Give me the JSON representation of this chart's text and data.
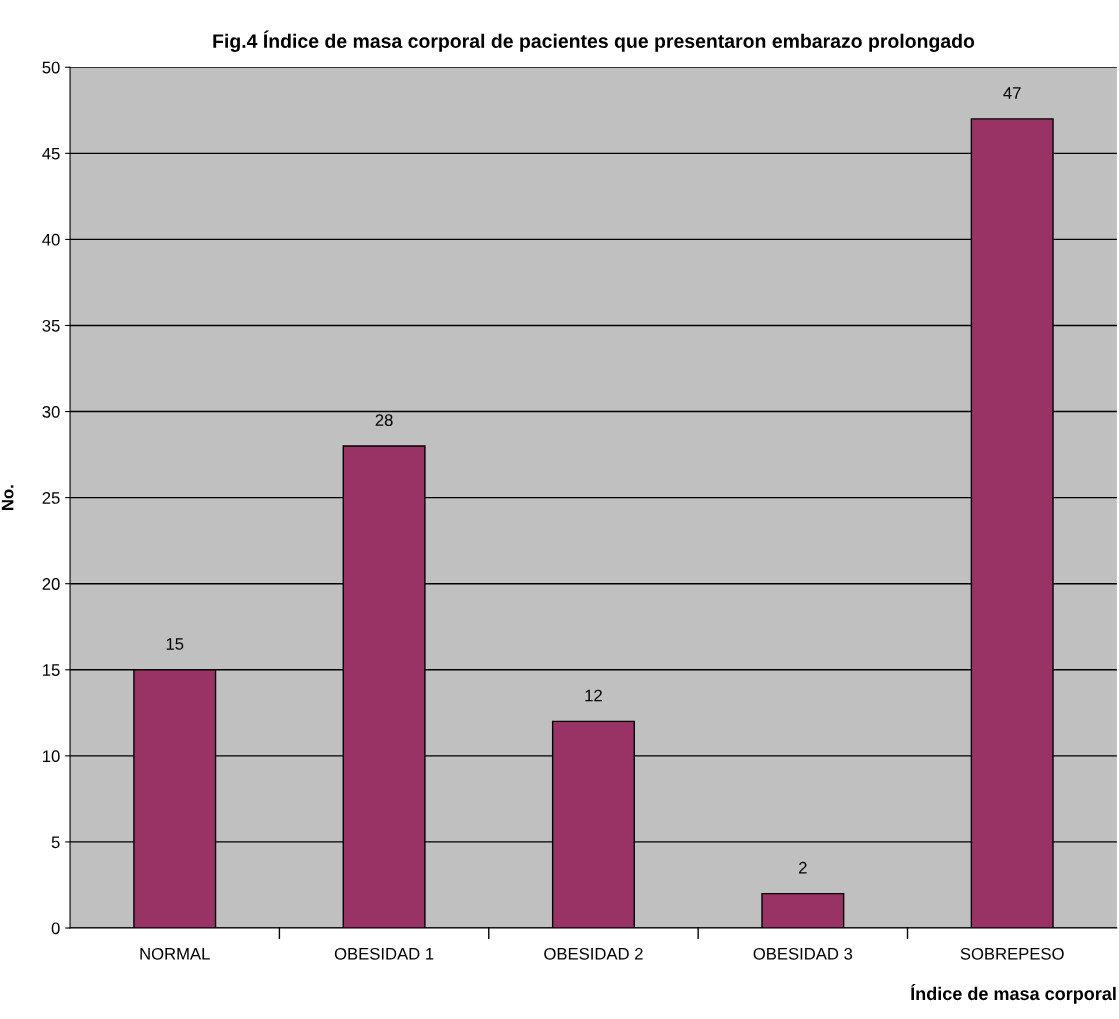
{
  "chart_data": {
    "type": "bar",
    "title": "Fig.4 Índice de masa corporal de pacientes que presentaron embarazo prolongado",
    "xlabel": "Índice de masa corporal",
    "ylabel": "No.",
    "categories": [
      "NORMAL",
      "OBESIDAD 1",
      "OBESIDAD 2",
      "OBESIDAD 3",
      "SOBREPESO"
    ],
    "values": [
      15,
      28,
      12,
      2,
      47
    ],
    "color": "#993366",
    "ylim": [
      0,
      50
    ],
    "yticks": [
      0,
      5,
      10,
      15,
      20,
      25,
      30,
      35,
      40,
      45,
      50
    ],
    "grid": "y",
    "data_labels": true
  }
}
